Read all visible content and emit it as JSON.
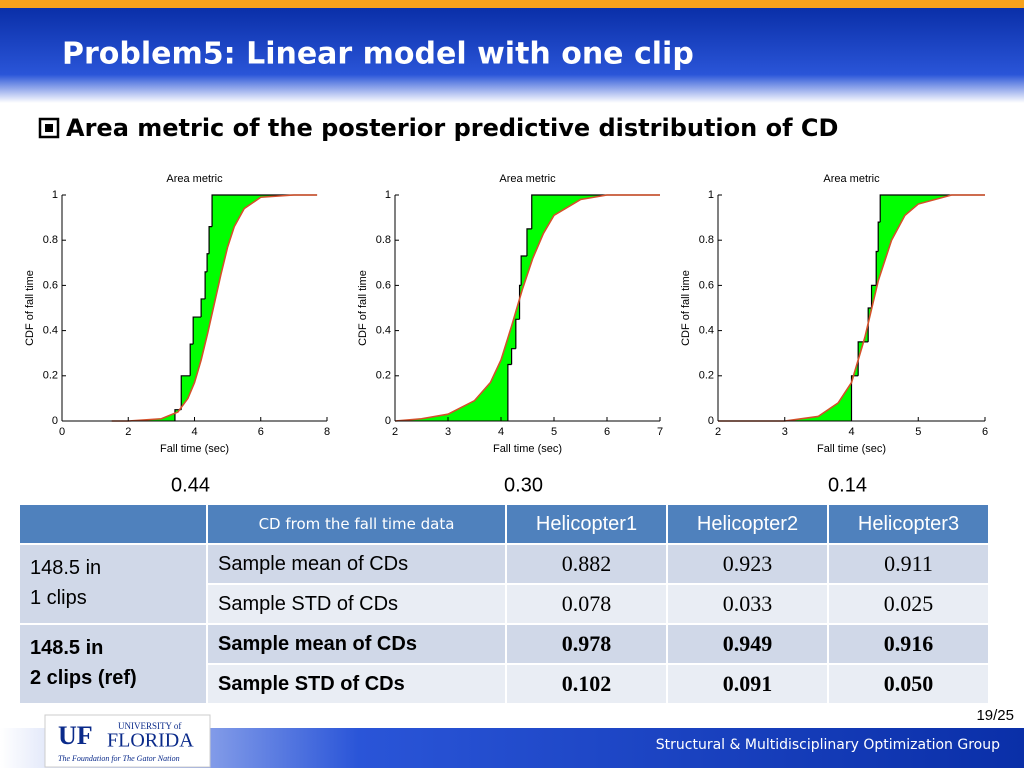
{
  "header": {
    "title": "Problem5: Linear model with one clip"
  },
  "bullet": "Area metric of the posterior predictive distribution of CD",
  "chart_data": [
    {
      "type": "line",
      "title": "Area metric",
      "x_label": "Fall time (sec)",
      "y_label": "CDF of fall time",
      "annotation": "0.44",
      "xlim": [
        0,
        8
      ],
      "xticks": [
        0,
        2,
        4,
        6,
        8
      ],
      "ylim": [
        0,
        1
      ],
      "yticks": [
        0,
        0.2,
        0.4,
        0.6,
        0.8,
        1
      ],
      "fill_color": "#00ff00",
      "series": [
        {
          "style": "step",
          "color": "#000000",
          "x": [
            3.41,
            3.6,
            3.87,
            3.96,
            4.2,
            4.32,
            4.38,
            4.44,
            4.53,
            7.7
          ],
          "values": [
            0.05,
            0.2,
            0.34,
            0.46,
            0.54,
            0.66,
            0.74,
            0.86,
            1,
            1
          ]
        },
        {
          "style": "smooth",
          "color": "#d4502a",
          "x": [
            1.5,
            2,
            3,
            3.5,
            3.8,
            4,
            4.2,
            4.4,
            4.6,
            4.8,
            5,
            5.2,
            5.5,
            6,
            7,
            7.7
          ],
          "values": [
            0,
            0,
            0.01,
            0.04,
            0.1,
            0.17,
            0.27,
            0.39,
            0.52,
            0.65,
            0.77,
            0.86,
            0.94,
            0.99,
            1,
            1
          ]
        }
      ]
    },
    {
      "type": "line",
      "title": "Area metric",
      "x_label": "Fall time (sec)",
      "y_label": "CDF of fall time",
      "annotation": "0.30",
      "xlim": [
        2,
        7
      ],
      "xticks": [
        2,
        3,
        4,
        5,
        6,
        7
      ],
      "ylim": [
        0,
        1
      ],
      "yticks": [
        0,
        0.2,
        0.4,
        0.6,
        0.8,
        1
      ],
      "fill_color": "#00ff00",
      "series": [
        {
          "style": "step",
          "color": "#000000",
          "x": [
            4.13,
            4.2,
            4.28,
            4.35,
            4.38,
            4.49,
            4.58,
            7
          ],
          "values": [
            0.25,
            0.32,
            0.45,
            0.6,
            0.73,
            0.85,
            1,
            1
          ]
        },
        {
          "style": "smooth",
          "color": "#d4502a",
          "x": [
            2,
            2.5,
            3,
            3.5,
            3.8,
            4,
            4.2,
            4.4,
            4.6,
            4.8,
            5,
            5.5,
            6,
            7
          ],
          "values": [
            0,
            0.01,
            0.03,
            0.09,
            0.17,
            0.27,
            0.42,
            0.58,
            0.72,
            0.83,
            0.91,
            0.98,
            1,
            1
          ]
        }
      ]
    },
    {
      "type": "line",
      "title": "Area metric",
      "x_label": "Fall time (sec)",
      "y_label": "CDF of fall time",
      "annotation": "0.14",
      "xlim": [
        2,
        6
      ],
      "xticks": [
        2,
        3,
        4,
        5,
        6
      ],
      "ylim": [
        0,
        1
      ],
      "yticks": [
        0,
        0.2,
        0.4,
        0.6,
        0.8,
        1
      ],
      "fill_color": "#00ff00",
      "series": [
        {
          "style": "step",
          "color": "#000000",
          "x": [
            4.0,
            4.1,
            4.25,
            4.3,
            4.37,
            4.4,
            4.43,
            6
          ],
          "values": [
            0.2,
            0.35,
            0.5,
            0.6,
            0.75,
            0.88,
            1,
            1
          ]
        },
        {
          "style": "smooth",
          "color": "#d4502a",
          "x": [
            2,
            3,
            3.5,
            3.8,
            4,
            4.2,
            4.4,
            4.6,
            4.8,
            5,
            5.5,
            6
          ],
          "values": [
            0,
            0,
            0.02,
            0.08,
            0.17,
            0.37,
            0.62,
            0.8,
            0.91,
            0.96,
            1,
            1
          ]
        }
      ]
    }
  ],
  "table": {
    "header": [
      "CD from the fall time data",
      "Helicopter1",
      "Helicopter2",
      "Helicopter3"
    ],
    "groups": [
      {
        "label": [
          "148.5 in",
          "1 clips"
        ],
        "rows": [
          {
            "label": "Sample mean of CDs",
            "values": [
              "0.882",
              "0.923",
              "0.911"
            ]
          },
          {
            "label": "Sample STD of CDs",
            "values": [
              "0.078",
              "0.033",
              "0.025"
            ]
          }
        ]
      },
      {
        "label": [
          "148.5 in",
          "2 clips (ref)"
        ],
        "rows": [
          {
            "label": "Sample mean of CDs",
            "values": [
              "0.978",
              "0.949",
              "0.916"
            ]
          },
          {
            "label": "Sample STD of CDs",
            "values": [
              "0.102",
              "0.091",
              "0.050"
            ]
          }
        ]
      }
    ]
  },
  "footer": {
    "logo_mark": "UF",
    "logo_top": "UNIVERSITY of",
    "logo_name": "FLORIDA",
    "logo_tagline": "The Foundation for The Gator Nation",
    "group": "Structural & Multidisciplinary Optimization Group",
    "page": "19/25"
  }
}
